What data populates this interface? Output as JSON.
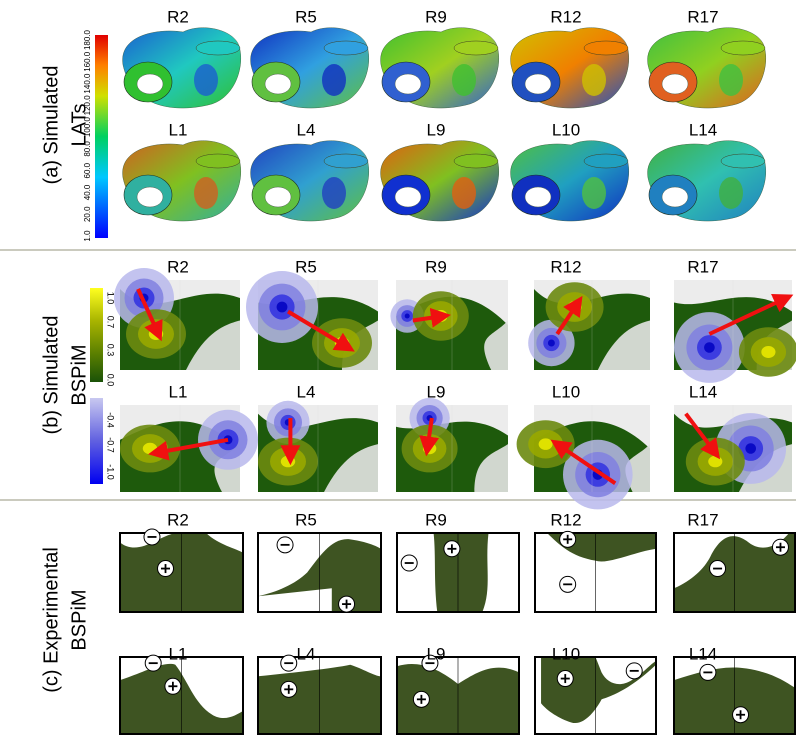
{
  "sections": [
    {
      "label": [
        "(a) Simulated",
        "LATs"
      ],
      "rows": [
        [
          "R2",
          "R5",
          "R9",
          "R12",
          "R17"
        ],
        [
          "L1",
          "L4",
          "L9",
          "L10",
          "L14"
        ]
      ],
      "colorbar": [
        "180.0",
        "160.0",
        "140.0",
        "120.0",
        "100.0",
        "80.0",
        "60.0",
        "40.0",
        "20.0",
        "1.0"
      ]
    },
    {
      "label": [
        "(b) Simulated",
        "BSPiM"
      ],
      "rows": [
        [
          "R2",
          "R5",
          "R9",
          "R12",
          "R17"
        ],
        [
          "L1",
          "L4",
          "L9",
          "L10",
          "L14"
        ]
      ],
      "colorbar": [
        "1.0",
        "0.7",
        "0.3",
        "0.0",
        "-0.4",
        "-0.7",
        "-1.0"
      ]
    },
    {
      "label": [
        "(c) Experimental",
        "BSPiM"
      ],
      "rows": [
        [
          "R2",
          "R5",
          "R9",
          "R12",
          "R17"
        ],
        [
          "L1",
          "L4",
          "L9",
          "L10",
          "L14"
        ]
      ]
    }
  ]
}
